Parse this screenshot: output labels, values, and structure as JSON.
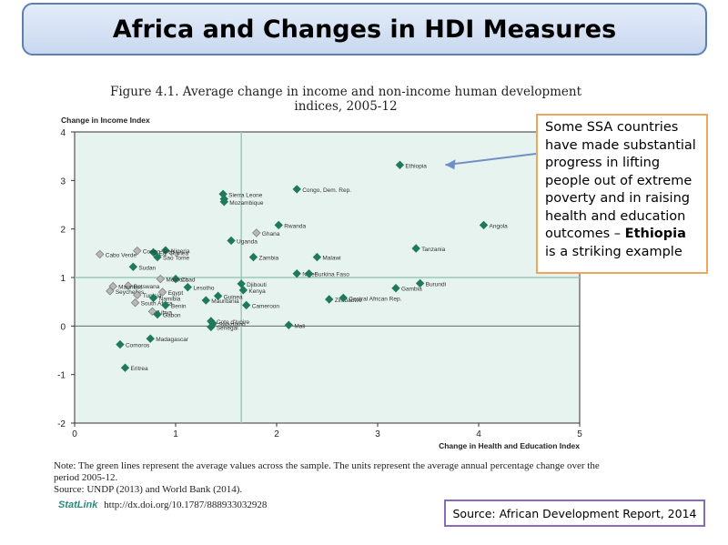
{
  "slide": {
    "title": "Africa and Changes in HDI Measures",
    "callout_text": "Some SSA countries have made substantial progress in lifting people out of extreme poverty and in raising health and education outcomes – ",
    "callout_bold": "Ethiopia",
    "callout_tail": " is a striking example",
    "source_box": "Source: African Development Report, 2014"
  },
  "figure": {
    "title_line1": "Figure 4.1. Average change in income and non-income human development",
    "title_line2": "indices, 2005-12",
    "note": "Note: The green lines represent the average values across the sample. The units represent the average annual percentage change over the period 2005-12.",
    "source": "Source: UNDP (2013) and World Bank (2014).",
    "statlink_brand": "StatLink",
    "statlink_url": "http://dx.doi.org/10.1787/888933032928"
  },
  "chart_data": {
    "type": "scatter",
    "ylabel": "Change in Income Index",
    "xlabel": "Change in Health and Education Index",
    "xlim": [
      0,
      5
    ],
    "ylim": [
      -2,
      4
    ],
    "x_ticks": [
      0,
      1,
      2,
      3,
      4,
      5
    ],
    "y_ticks": [
      -2,
      -1,
      0,
      1,
      2,
      3,
      4
    ],
    "average_lines": {
      "x": 1.65,
      "y": 1.0,
      "color": "#9cc9b8"
    },
    "colors": {
      "ssa": "#1f7a5c",
      "other": "#b8b8b8",
      "plot_bg": "#e7f3ef"
    },
    "points": [
      {
        "label": "Ethiopia",
        "x": 3.22,
        "y": 3.32,
        "group": "ssa"
      },
      {
        "label": "Angola",
        "x": 4.05,
        "y": 2.08,
        "group": "ssa"
      },
      {
        "label": "Tanzania",
        "x": 3.38,
        "y": 1.6,
        "group": "ssa"
      },
      {
        "label": "Burundi",
        "x": 3.42,
        "y": 0.88,
        "group": "ssa"
      },
      {
        "label": "Gambia",
        "x": 3.18,
        "y": 0.78,
        "group": "ssa"
      },
      {
        "label": "Sierra Leone",
        "x": 1.47,
        "y": 2.72,
        "group": "ssa"
      },
      {
        "label": "",
        "x": 1.48,
        "y": 2.62,
        "group": "ssa"
      },
      {
        "label": "Mozambique",
        "x": 1.48,
        "y": 2.56,
        "group": "ssa"
      },
      {
        "label": "Congo, Dem. Rep.",
        "x": 2.2,
        "y": 2.82,
        "group": "ssa"
      },
      {
        "label": "Rwanda",
        "x": 2.02,
        "y": 2.08,
        "group": "ssa"
      },
      {
        "label": "Ghana",
        "x": 1.8,
        "y": 1.92,
        "group": "other"
      },
      {
        "label": "Uganda",
        "x": 1.55,
        "y": 1.76,
        "group": "ssa"
      },
      {
        "label": "Zambia",
        "x": 1.77,
        "y": 1.42,
        "group": "ssa"
      },
      {
        "label": "Malawi",
        "x": 2.4,
        "y": 1.42,
        "group": "ssa"
      },
      {
        "label": "Niger",
        "x": 2.2,
        "y": 1.08,
        "group": "ssa"
      },
      {
        "label": "Burkina Faso",
        "x": 2.32,
        "y": 1.08,
        "group": "ssa"
      },
      {
        "label": "Zimbabwe",
        "x": 2.52,
        "y": 0.55,
        "group": "ssa"
      },
      {
        "label": "Central African Rep.",
        "x": 2.66,
        "y": 0.58,
        "group": "ssa"
      },
      {
        "label": "Mali",
        "x": 2.12,
        "y": 0.02,
        "group": "ssa"
      },
      {
        "label": "Djibouti",
        "x": 1.65,
        "y": 0.87,
        "group": "ssa"
      },
      {
        "label": "Kenya",
        "x": 1.67,
        "y": 0.74,
        "group": "ssa"
      },
      {
        "label": "Cameroon",
        "x": 1.7,
        "y": 0.43,
        "group": "ssa"
      },
      {
        "label": "Guinea",
        "x": 1.42,
        "y": 0.62,
        "group": "ssa"
      },
      {
        "label": "Mauritania",
        "x": 1.3,
        "y": 0.53,
        "group": "ssa"
      },
      {
        "label": "Lesotho",
        "x": 1.12,
        "y": 0.8,
        "group": "ssa"
      },
      {
        "label": "Cote d'Ivoire",
        "x": 1.35,
        "y": 0.1,
        "group": "ssa"
      },
      {
        "label": "Senegal",
        "x": 1.35,
        "y": -0.02,
        "group": "ssa"
      },
      {
        "label": "Swaziland",
        "x": 1.37,
        "y": 0.05,
        "group": "ssa"
      },
      {
        "label": "Nigeria",
        "x": 0.9,
        "y": 1.56,
        "group": "ssa"
      },
      {
        "label": "Eq. Guinea",
        "x": 0.78,
        "y": 1.52,
        "group": "ssa"
      },
      {
        "label": "Sao Tome",
        "x": 0.82,
        "y": 1.42,
        "group": "ssa"
      },
      {
        "label": "Congo, Rep.",
        "x": 0.62,
        "y": 1.55,
        "group": "other"
      },
      {
        "label": "Cabo Verde",
        "x": 0.25,
        "y": 1.48,
        "group": "other"
      },
      {
        "label": "Sudan",
        "x": 0.58,
        "y": 1.22,
        "group": "ssa"
      },
      {
        "label": "Chad",
        "x": 1.0,
        "y": 0.97,
        "group": "ssa"
      },
      {
        "label": "Morocco",
        "x": 0.85,
        "y": 0.97,
        "group": "other"
      },
      {
        "label": "Botswana",
        "x": 0.53,
        "y": 0.83,
        "group": "other"
      },
      {
        "label": "Mauritius",
        "x": 0.38,
        "y": 0.82,
        "group": "other"
      },
      {
        "label": "Seychelles",
        "x": 0.35,
        "y": 0.72,
        "group": "other"
      },
      {
        "label": "Tunisia",
        "x": 0.62,
        "y": 0.64,
        "group": "other"
      },
      {
        "label": "Egypt",
        "x": 0.87,
        "y": 0.7,
        "group": "other"
      },
      {
        "label": "Namibia",
        "x": 0.78,
        "y": 0.58,
        "group": "ssa"
      },
      {
        "label": "South Africa",
        "x": 0.6,
        "y": 0.48,
        "group": "other"
      },
      {
        "label": "Benin",
        "x": 0.9,
        "y": 0.43,
        "group": "ssa"
      },
      {
        "label": "Libya",
        "x": 0.77,
        "y": 0.3,
        "group": "other"
      },
      {
        "label": "Gabon",
        "x": 0.82,
        "y": 0.24,
        "group": "ssa"
      },
      {
        "label": "Madagascar",
        "x": 0.75,
        "y": -0.26,
        "group": "ssa"
      },
      {
        "label": "Comoros",
        "x": 0.45,
        "y": -0.38,
        "group": "ssa"
      },
      {
        "label": "Eritrea",
        "x": 0.5,
        "y": -0.86,
        "group": "ssa"
      }
    ]
  }
}
